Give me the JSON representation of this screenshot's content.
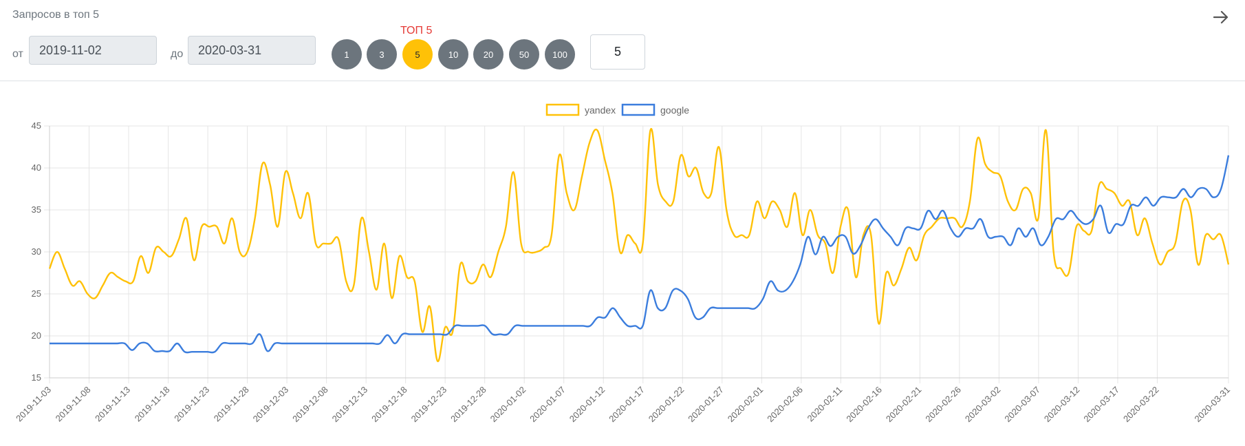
{
  "header": {
    "title": "Запросов в топ 5",
    "arrow_icon": "arrow-right-icon"
  },
  "filters": {
    "from_label": "от",
    "from_value": "2019-11-02",
    "to_label": "до",
    "to_value": "2020-03-31",
    "top_label": "ТОП 5",
    "top_buttons": [
      "1",
      "3",
      "5",
      "10",
      "20",
      "50",
      "100"
    ],
    "active_top": "5",
    "count_value": "5"
  },
  "colors": {
    "yandex": "#ffc107",
    "google": "#3b7ddd",
    "active_button": "#ffc107",
    "inactive_button": "#6c757d",
    "top_label": "#e53935"
  },
  "chart_data": {
    "type": "line",
    "legend": [
      "yandex",
      "google"
    ],
    "legend_position": "top-center",
    "grid": true,
    "x_tick_labels": [
      "2019-11-03",
      "2019-11-08",
      "2019-11-13",
      "2019-11-18",
      "2019-11-23",
      "2019-11-28",
      "2019-12-03",
      "2019-12-08",
      "2019-12-13",
      "2019-12-18",
      "2019-12-23",
      "2019-12-28",
      "2020-01-02",
      "2020-01-07",
      "2020-01-12",
      "2020-01-17",
      "2020-01-22",
      "2020-01-27",
      "2020-02-01",
      "2020-02-06",
      "2020-02-11",
      "2020-02-16",
      "2020-02-21",
      "2020-02-26",
      "2020-03-02",
      "2020-03-07",
      "2020-03-12",
      "2020-03-17",
      "2020-03-22",
      "2020-03-31"
    ],
    "x_range": [
      "2019-11-03",
      "2020-03-31"
    ],
    "y_ticks": [
      15,
      20,
      25,
      30,
      35,
      40,
      45
    ],
    "ylim": [
      15,
      45
    ],
    "series": [
      {
        "name": "yandex",
        "color": "#ffc107",
        "values": [
          28,
          30,
          28,
          26,
          26.5,
          25,
          24.5,
          26,
          27.5,
          27,
          26.5,
          26.5,
          29.5,
          27.5,
          30.5,
          30,
          29.5,
          31.5,
          34,
          29,
          33,
          33,
          33,
          31,
          34,
          30,
          30,
          34,
          40.5,
          38,
          33,
          39.5,
          37,
          34,
          37,
          31,
          31,
          31,
          31.5,
          26.5,
          26,
          34,
          30,
          25.5,
          31,
          24.5,
          29.5,
          27,
          26.5,
          20.5,
          23.5,
          17,
          21,
          20.5,
          28.5,
          26.5,
          26.5,
          28.5,
          27,
          30,
          33,
          39.5,
          31,
          30,
          30,
          30.5,
          32,
          41.5,
          37,
          35,
          39,
          43,
          44.5,
          41,
          37,
          30,
          32,
          31,
          31,
          44.5,
          38,
          36,
          36,
          41.5,
          39,
          40,
          37,
          37,
          42.5,
          35,
          32,
          32,
          32,
          36,
          34,
          36,
          35,
          33,
          37,
          32,
          35,
          32,
          31,
          27.5,
          33,
          35,
          27,
          32,
          32,
          21.5,
          27.5,
          26,
          28,
          30.5,
          29,
          32,
          33,
          34,
          34,
          34,
          33,
          36,
          43.5,
          40.5,
          39.5,
          39,
          36,
          35,
          37.5,
          37,
          34,
          44.5,
          30,
          28,
          27.5,
          33,
          32.5,
          32.5,
          38,
          37.5,
          37,
          35.5,
          36,
          32,
          34,
          31,
          28.5,
          30,
          31,
          36,
          35,
          28.5,
          32,
          31.5,
          32,
          28.5
        ]
      },
      {
        "name": "google",
        "color": "#3b7ddd",
        "values": [
          19.1,
          19.1,
          19.1,
          19.1,
          19.1,
          19.1,
          19.1,
          19.1,
          19.1,
          19.1,
          19.1,
          18.3,
          19.1,
          19.1,
          18.2,
          18.2,
          18.2,
          19.1,
          18.1,
          18.1,
          18.1,
          18.1,
          18.1,
          19.1,
          19.1,
          19.1,
          19.1,
          19.1,
          20.2,
          18.2,
          19.1,
          19.1,
          19.1,
          19.1,
          19.1,
          19.1,
          19.1,
          19.1,
          19.1,
          19.1,
          19.1,
          19.1,
          19.1,
          19.1,
          19.1,
          20.1,
          19.1,
          20.2,
          20.2,
          20.2,
          20.2,
          20.2,
          20.2,
          20.2,
          21.2,
          21.2,
          21.2,
          21.2,
          21.2,
          20.2,
          20.2,
          20.2,
          21.2,
          21.2,
          21.2,
          21.2,
          21.2,
          21.2,
          21.2,
          21.2,
          21.2,
          21.2,
          21.2,
          22.2,
          22.2,
          23.3,
          22.2,
          21.2,
          21.2,
          21.2,
          25.4,
          23.3,
          23.3,
          25.4,
          25.4,
          24.4,
          22.2,
          22.2,
          23.3,
          23.3,
          23.3,
          23.3,
          23.3,
          23.3,
          23.3,
          24.4,
          26.5,
          25.4,
          25.4,
          26.5,
          28.6,
          31.8,
          29.7,
          31.8,
          30.7,
          31.8,
          31.8,
          29.8,
          30.8,
          32.8,
          33.9,
          32.8,
          31.8,
          30.8,
          32.8,
          32.8,
          32.8,
          34.9,
          33.9,
          34.9,
          32.8,
          31.8,
          32.8,
          32.8,
          33.9,
          31.8,
          31.8,
          31.8,
          30.8,
          32.8,
          31.8,
          32.8,
          30.8,
          31.8,
          33.9,
          33.9,
          34.9,
          33.9,
          33.3,
          33.9,
          35.5,
          32.3,
          33.3,
          33.3,
          35.5,
          35.5,
          36.5,
          35.5,
          36.5,
          36.5,
          36.5,
          37.5,
          36.5,
          37.5,
          37.5,
          36.5,
          37.5,
          41.5
        ]
      }
    ]
  }
}
